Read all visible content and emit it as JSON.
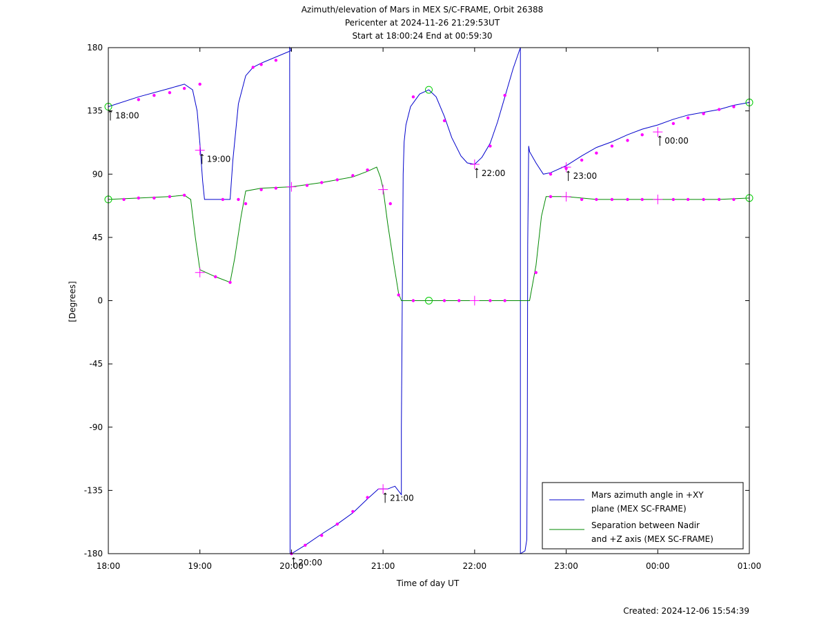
{
  "chart_data": {
    "type": "line",
    "title": "Azimuth/elevation of Mars in MEX S/C-FRAME,  Orbit 26388",
    "subtitle_1": "Pericenter at 2024-11-26 21:29:53UT",
    "subtitle_2": "Start at 18:00:24 End at 00:59:30",
    "xlabel": "Time of day UT",
    "ylabel": "[Degrees]",
    "footer": "Created: 2024-12-06 15:54:39",
    "x_unit": "hours after 18:00 UT",
    "xlim": [
      0,
      7
    ],
    "ylim": [
      -180,
      180
    ],
    "x_ticks": [
      {
        "x": 0,
        "label": "18:00"
      },
      {
        "x": 1,
        "label": "19:00"
      },
      {
        "x": 2,
        "label": "20:00"
      },
      {
        "x": 3,
        "label": "21:00"
      },
      {
        "x": 4,
        "label": "22:00"
      },
      {
        "x": 5,
        "label": "23:00"
      },
      {
        "x": 6,
        "label": "00:00"
      },
      {
        "x": 7,
        "label": "01:00"
      }
    ],
    "y_ticks": [
      {
        "y": 180,
        "label": "180"
      },
      {
        "y": 135,
        "label": "135"
      },
      {
        "y": 90,
        "label": "90"
      },
      {
        "y": 45,
        "label": "45"
      },
      {
        "y": 0,
        "label": "0"
      },
      {
        "y": -45,
        "label": "-45"
      },
      {
        "y": -90,
        "label": "-90"
      },
      {
        "y": -135,
        "label": "-135"
      },
      {
        "y": -180,
        "label": "-180"
      }
    ],
    "grid": false,
    "legend_position": "bottom-right",
    "series": [
      {
        "name": "Mars azimuth angle in +XY\nplane (MEX SC-FRAME)",
        "color": "#0000cc",
        "points": [
          [
            0.0,
            138
          ],
          [
            0.33,
            145
          ],
          [
            0.67,
            151
          ],
          [
            0.83,
            154
          ],
          [
            0.92,
            150
          ],
          [
            0.97,
            135
          ],
          [
            1.0,
            112
          ],
          [
            1.03,
            85
          ],
          [
            1.05,
            72
          ],
          [
            1.33,
            72
          ],
          [
            1.36,
            100
          ],
          [
            1.42,
            140
          ],
          [
            1.5,
            160
          ],
          [
            1.58,
            166
          ],
          [
            1.67,
            169
          ],
          [
            2.0,
            178
          ],
          [
            1.98,
            180
          ],
          [
            1.985,
            -180
          ],
          [
            2.0,
            -180
          ],
          [
            2.15,
            -174
          ],
          [
            2.33,
            -166
          ],
          [
            2.5,
            -159
          ],
          [
            2.67,
            -151
          ],
          [
            2.83,
            -141
          ],
          [
            2.95,
            -134
          ],
          [
            3.05,
            -134
          ],
          [
            3.13,
            -132
          ],
          [
            3.2,
            -138
          ],
          [
            3.2,
            -90
          ],
          [
            3.22,
            90
          ],
          [
            3.23,
            113
          ],
          [
            3.25,
            125
          ],
          [
            3.3,
            138
          ],
          [
            3.4,
            147
          ],
          [
            3.5,
            150
          ],
          [
            3.58,
            145
          ],
          [
            3.67,
            131
          ],
          [
            3.75,
            116
          ],
          [
            3.85,
            103
          ],
          [
            3.92,
            98
          ],
          [
            4.0,
            97
          ],
          [
            4.08,
            102
          ],
          [
            4.17,
            112
          ],
          [
            4.25,
            127
          ],
          [
            4.33,
            145
          ],
          [
            4.42,
            165
          ],
          [
            4.5,
            180
          ],
          [
            4.5,
            -180
          ],
          [
            4.55,
            -178
          ],
          [
            4.57,
            -170
          ],
          [
            4.575,
            -100
          ],
          [
            4.58,
            40
          ],
          [
            4.59,
            110
          ],
          [
            4.6,
            106
          ],
          [
            4.67,
            98
          ],
          [
            4.75,
            90
          ],
          [
            4.83,
            91
          ],
          [
            5.0,
            96
          ],
          [
            5.17,
            103
          ],
          [
            5.33,
            109
          ],
          [
            5.5,
            113
          ],
          [
            5.67,
            118
          ],
          [
            5.83,
            122
          ],
          [
            6.0,
            125
          ],
          [
            6.17,
            129
          ],
          [
            6.33,
            132
          ],
          [
            6.5,
            134
          ],
          [
            6.67,
            136
          ],
          [
            6.83,
            139
          ],
          [
            7.0,
            141
          ]
        ],
        "markers": [
          [
            0.33,
            143
          ],
          [
            0.5,
            146
          ],
          [
            0.67,
            148
          ],
          [
            0.83,
            151
          ],
          [
            1.0,
            154
          ],
          [
            1.25,
            72
          ],
          [
            1.42,
            72
          ],
          [
            1.58,
            166
          ],
          [
            1.67,
            168
          ],
          [
            1.83,
            171
          ],
          [
            2.0,
            -180
          ],
          [
            2.15,
            -174
          ],
          [
            2.33,
            -167
          ],
          [
            2.5,
            -159
          ],
          [
            2.67,
            -150
          ],
          [
            2.83,
            -140
          ],
          [
            3.33,
            145
          ],
          [
            3.67,
            128
          ],
          [
            4.17,
            110
          ],
          [
            4.33,
            146
          ],
          [
            4.83,
            90
          ],
          [
            5.0,
            94
          ],
          [
            5.17,
            100
          ],
          [
            5.33,
            105
          ],
          [
            5.5,
            110
          ],
          [
            5.67,
            114
          ],
          [
            5.83,
            118
          ],
          [
            6.17,
            126
          ],
          [
            6.33,
            130
          ],
          [
            6.5,
            133
          ],
          [
            6.67,
            136
          ],
          [
            6.83,
            138
          ]
        ],
        "plus_markers": [
          [
            1.0,
            107
          ],
          [
            3.0,
            -134
          ],
          [
            4.0,
            97
          ],
          [
            5.0,
            95
          ],
          [
            6.0,
            120
          ]
        ],
        "circle_markers": [
          [
            0.0,
            138
          ],
          [
            3.5,
            150
          ],
          [
            7.0,
            141
          ]
        ],
        "time_labels": [
          {
            "x": 0.0,
            "y": 138,
            "label": "18:00"
          },
          {
            "x": 1.0,
            "y": 107,
            "label": "19:00"
          },
          {
            "x": 2.0,
            "y": -180,
            "label": "20:00"
          },
          {
            "x": 3.0,
            "y": -134,
            "label": "21:00"
          },
          {
            "x": 4.0,
            "y": 97,
            "label": "22:00"
          },
          {
            "x": 5.0,
            "y": 95,
            "label": "23:00"
          },
          {
            "x": 6.0,
            "y": 120,
            "label": "00:00"
          }
        ]
      },
      {
        "name": "Separation between Nadir\nand +Z axis (MEX SC-FRAME)",
        "color": "#008800",
        "points": [
          [
            0.0,
            72
          ],
          [
            0.33,
            73
          ],
          [
            0.67,
            74
          ],
          [
            0.83,
            75
          ],
          [
            0.9,
            72
          ],
          [
            0.95,
            45
          ],
          [
            1.0,
            22
          ],
          [
            1.17,
            17
          ],
          [
            1.33,
            13
          ],
          [
            1.38,
            30
          ],
          [
            1.45,
            60
          ],
          [
            1.5,
            78
          ],
          [
            1.67,
            80
          ],
          [
            2.0,
            81
          ],
          [
            2.33,
            84
          ],
          [
            2.67,
            88
          ],
          [
            2.83,
            92
          ],
          [
            2.93,
            95
          ],
          [
            2.97,
            88
          ],
          [
            3.0,
            80
          ],
          [
            3.05,
            55
          ],
          [
            3.12,
            25
          ],
          [
            3.17,
            5
          ],
          [
            3.2,
            0
          ],
          [
            3.5,
            0
          ],
          [
            4.0,
            0
          ],
          [
            4.5,
            0
          ],
          [
            4.6,
            0
          ],
          [
            4.67,
            25
          ],
          [
            4.73,
            60
          ],
          [
            4.78,
            74
          ],
          [
            5.0,
            74
          ],
          [
            5.33,
            72
          ],
          [
            5.67,
            72
          ],
          [
            6.0,
            72
          ],
          [
            6.33,
            72
          ],
          [
            6.67,
            72
          ],
          [
            7.0,
            73
          ]
        ],
        "markers": [
          [
            0.17,
            72
          ],
          [
            0.33,
            73
          ],
          [
            0.5,
            73
          ],
          [
            0.67,
            74
          ],
          [
            0.83,
            75
          ],
          [
            1.17,
            17
          ],
          [
            1.33,
            13
          ],
          [
            1.5,
            69
          ],
          [
            1.67,
            79
          ],
          [
            1.83,
            80
          ],
          [
            2.17,
            82
          ],
          [
            2.33,
            84
          ],
          [
            2.5,
            86
          ],
          [
            2.67,
            89
          ],
          [
            2.83,
            93
          ],
          [
            3.08,
            69
          ],
          [
            3.17,
            4
          ],
          [
            3.33,
            0
          ],
          [
            3.67,
            0
          ],
          [
            3.83,
            0
          ],
          [
            4.17,
            0
          ],
          [
            4.33,
            0
          ],
          [
            4.67,
            20
          ],
          [
            4.83,
            74
          ],
          [
            5.17,
            72
          ],
          [
            5.33,
            72
          ],
          [
            5.5,
            72
          ],
          [
            5.67,
            72
          ],
          [
            5.83,
            72
          ],
          [
            6.17,
            72
          ],
          [
            6.33,
            72
          ],
          [
            6.5,
            72
          ],
          [
            6.67,
            72
          ],
          [
            6.83,
            72
          ]
        ],
        "plus_markers": [
          [
            1.0,
            20
          ],
          [
            2.0,
            81
          ],
          [
            3.0,
            79
          ],
          [
            4.0,
            0
          ],
          [
            5.0,
            74
          ],
          [
            6.0,
            72
          ]
        ],
        "circle_markers": [
          [
            0.0,
            72
          ],
          [
            3.5,
            0
          ],
          [
            7.0,
            73
          ]
        ]
      }
    ]
  }
}
